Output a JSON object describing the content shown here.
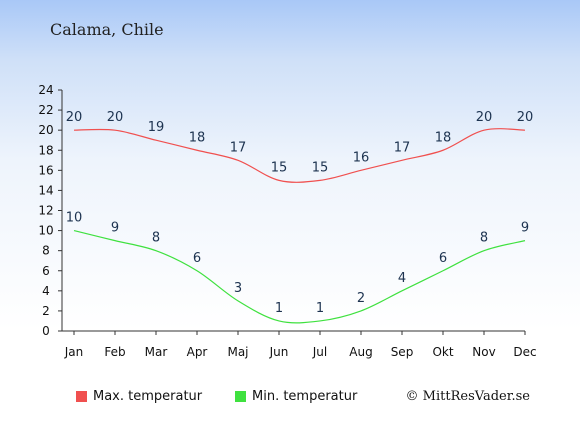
{
  "header": {
    "location": "Calama, Chile"
  },
  "footer": {
    "credit": "© MittResVader.se"
  },
  "colors": {
    "max": "#f0504f",
    "min": "#3fe13f"
  },
  "chart_data": {
    "type": "line",
    "categories": [
      "Jan",
      "Feb",
      "Mar",
      "Apr",
      "Maj",
      "Jun",
      "Jul",
      "Aug",
      "Sep",
      "Okt",
      "Nov",
      "Dec"
    ],
    "series": [
      {
        "name": "Max. temperatur",
        "values": [
          20,
          20,
          19,
          18,
          17,
          15,
          15,
          16,
          17,
          18,
          20,
          20
        ]
      },
      {
        "name": "Min. temperatur",
        "values": [
          10,
          9,
          8,
          6,
          3,
          1,
          1,
          2,
          4,
          6,
          8,
          9
        ]
      }
    ],
    "ylim": [
      0,
      24
    ],
    "yticks": [
      0,
      2,
      4,
      6,
      8,
      10,
      12,
      14,
      16,
      18,
      20,
      22,
      24
    ],
    "grid": false,
    "legend": "bottom"
  }
}
